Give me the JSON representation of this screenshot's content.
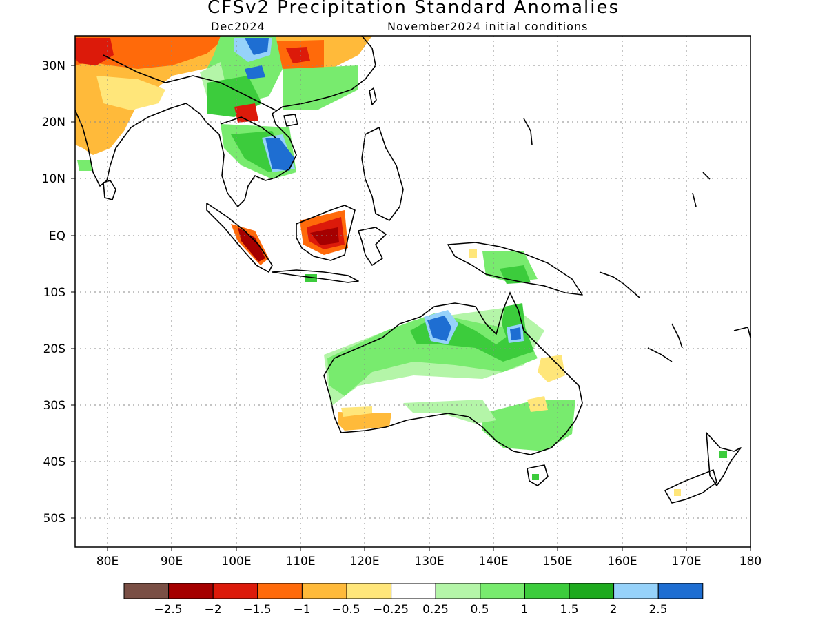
{
  "title": "CFSv2 Precipitation Standard Anomalies",
  "subtitle_left": "Dec2024",
  "subtitle_right": "November2024 initial conditions",
  "map": {
    "lon_range": [
      75,
      180
    ],
    "lat_range": [
      -55,
      35
    ],
    "lon_ticks": [
      "80E",
      "90E",
      "100E",
      "110E",
      "120E",
      "130E",
      "140E",
      "150E",
      "160E",
      "170E",
      "180"
    ],
    "lat_ticks": [
      "30N",
      "20N",
      "10N",
      "EQ",
      "10S",
      "20S",
      "30S",
      "40S",
      "50S"
    ],
    "grid": "dotted",
    "coastline_color": "#000000"
  },
  "colorbar": {
    "colors": [
      "#7a4f45",
      "#a50000",
      "#dc1a0a",
      "#ff6a0a",
      "#ffba3a",
      "#ffe67a",
      "#ffffff",
      "#b4f5a8",
      "#78eb6e",
      "#3ccc3c",
      "#1eaa1e",
      "#96d2fa",
      "#1e6ed2"
    ],
    "labels": [
      "−2.5",
      "−2",
      "−1.5",
      "−1",
      "−0.5",
      "−0.25",
      "0.25",
      "0.5",
      "1",
      "1.5",
      "2",
      "2.5"
    ]
  },
  "anomaly_regions": [
    {
      "region": "Northern India",
      "level": -1
    },
    {
      "region": "Tibetan Plateau / Western China",
      "level": -1.5
    },
    {
      "region": "Southern China",
      "level": 1
    },
    {
      "region": "Central China",
      "level": 2.5
    },
    {
      "region": "Myanmar",
      "level": 1
    },
    {
      "region": "Thailand / Cambodia",
      "level": 1.5
    },
    {
      "region": "Cambodia / Southern Vietnam",
      "level": 2.5
    },
    {
      "region": "Sumatra",
      "level": -2
    },
    {
      "region": "Borneo",
      "level": -2
    },
    {
      "region": "Northern Australia (Top End)",
      "level": 2.5
    },
    {
      "region": "Cape York / Queensland",
      "level": 1.5
    },
    {
      "region": "Western Australia",
      "level": 1
    },
    {
      "region": "Southwest Australia",
      "level": -0.5
    },
    {
      "region": "Southeast Australia",
      "level": 1
    },
    {
      "region": "New Guinea",
      "level": 1
    }
  ]
}
